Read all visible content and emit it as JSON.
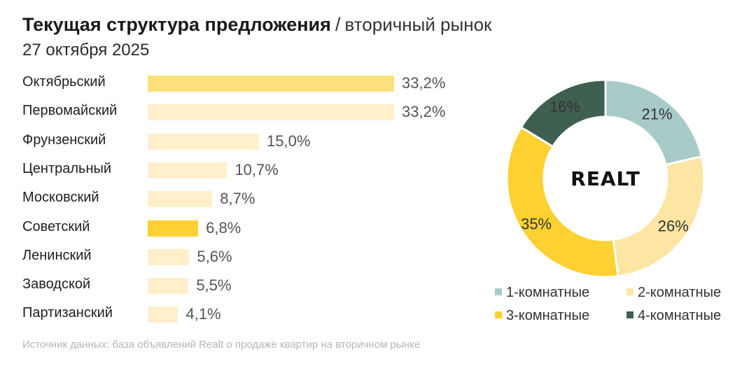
{
  "header": {
    "title": "Текущая структура предложения",
    "separator": "/",
    "subtitle": "вторичный рынок",
    "date": "27 октября 2025"
  },
  "logo_text": "REALT",
  "source": "Источник данных: база объявлений Realt о продаже квартир на вторичном рынке",
  "chart_data": [
    {
      "type": "bar",
      "orientation": "horizontal",
      "categories": [
        "Октябрьский",
        "Первомайский",
        "Фрунзенский",
        "Центральный",
        "Московский",
        "Советский",
        "Ленинский",
        "Заводской",
        "Партизанский"
      ],
      "values": [
        33.2,
        33.2,
        15.0,
        10.7,
        8.7,
        6.8,
        5.6,
        5.5,
        4.1
      ],
      "value_labels": [
        "33,2%",
        "33,2%",
        "15,0%",
        "10,7%",
        "8,7%",
        "6,8%",
        "5,6%",
        "5,5%",
        "4,1%"
      ],
      "colors": [
        "#fde07e",
        "#fff0cb",
        "#fff0cb",
        "#fff0cb",
        "#fff0cb",
        "#fdd132",
        "#fff0cb",
        "#fff0cb",
        "#fff0cb"
      ],
      "xlim": [
        0,
        33.2
      ]
    },
    {
      "type": "pie",
      "donut": true,
      "categories": [
        "1-комнатные",
        "2-комнатные",
        "3-комнатные",
        "4-комнатные"
      ],
      "values": [
        21,
        26,
        35,
        16
      ],
      "value_labels": [
        "21%",
        "26%",
        "35%",
        "16%"
      ],
      "colors": [
        "#a9cbc8",
        "#fde5a3",
        "#fdd132",
        "#3f5f51"
      ],
      "legend_position": "bottom"
    }
  ]
}
